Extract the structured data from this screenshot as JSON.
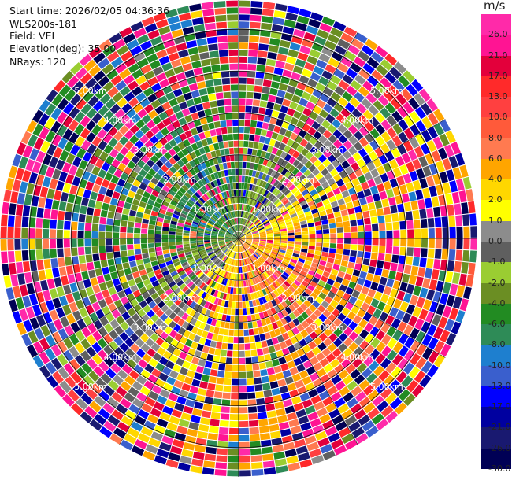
{
  "info": {
    "start_time": "Start time: 2026/02/05 04:36:36",
    "device": "WLS200s-181",
    "field": "Field: VEL",
    "elevation": "Elevation(deg): 35.00",
    "nrays": "NRays: 120"
  },
  "colorbar": {
    "unit": "m/s",
    "ticks": [
      "26.0",
      "21.0",
      "17.0",
      "13.0",
      "10.0",
      "8.0",
      "6.0",
      "4.0",
      "2.0",
      "1.0",
      "0.0",
      "-1.0",
      "-2.0",
      "-4.0",
      "-6.0",
      "-8.0",
      "-10.0",
      "-13.0",
      "-17.0",
      "-21.0",
      "-26.0",
      "-30.0"
    ],
    "colors": [
      "#ff2aa9",
      "#ff1493",
      "#e3003b",
      "#ff2a2a",
      "#ff4040",
      "#ff5a3a",
      "#ff7a50",
      "#ffa500",
      "#ffd700",
      "#ffff00",
      "#8c8c8c",
      "#5f5f5f",
      "#9acd32",
      "#6b8e23",
      "#228b22",
      "#2e8b57",
      "#1e7fcf",
      "#3a5fcd",
      "#0000ff",
      "#0000a0",
      "#191970",
      "#000055"
    ]
  },
  "chart_data": {
    "type": "heatmap",
    "projection": "polar PPI",
    "field": "VEL",
    "units": "m/s",
    "elevation_deg": 35.0,
    "n_rays": 120,
    "range_rings_km": [
      1,
      2,
      3,
      4,
      5
    ],
    "range_ring_labels": [
      "1.00km",
      "2.00km",
      "3.00km",
      "4.00km",
      "5.00km"
    ],
    "max_range_km": 5.7,
    "color_range": [
      -30,
      30
    ],
    "pattern": "dipole: negative (green/blue) velocities toward north-west, positive (yellow/orange/red) toward south-east, noisy at far range"
  }
}
